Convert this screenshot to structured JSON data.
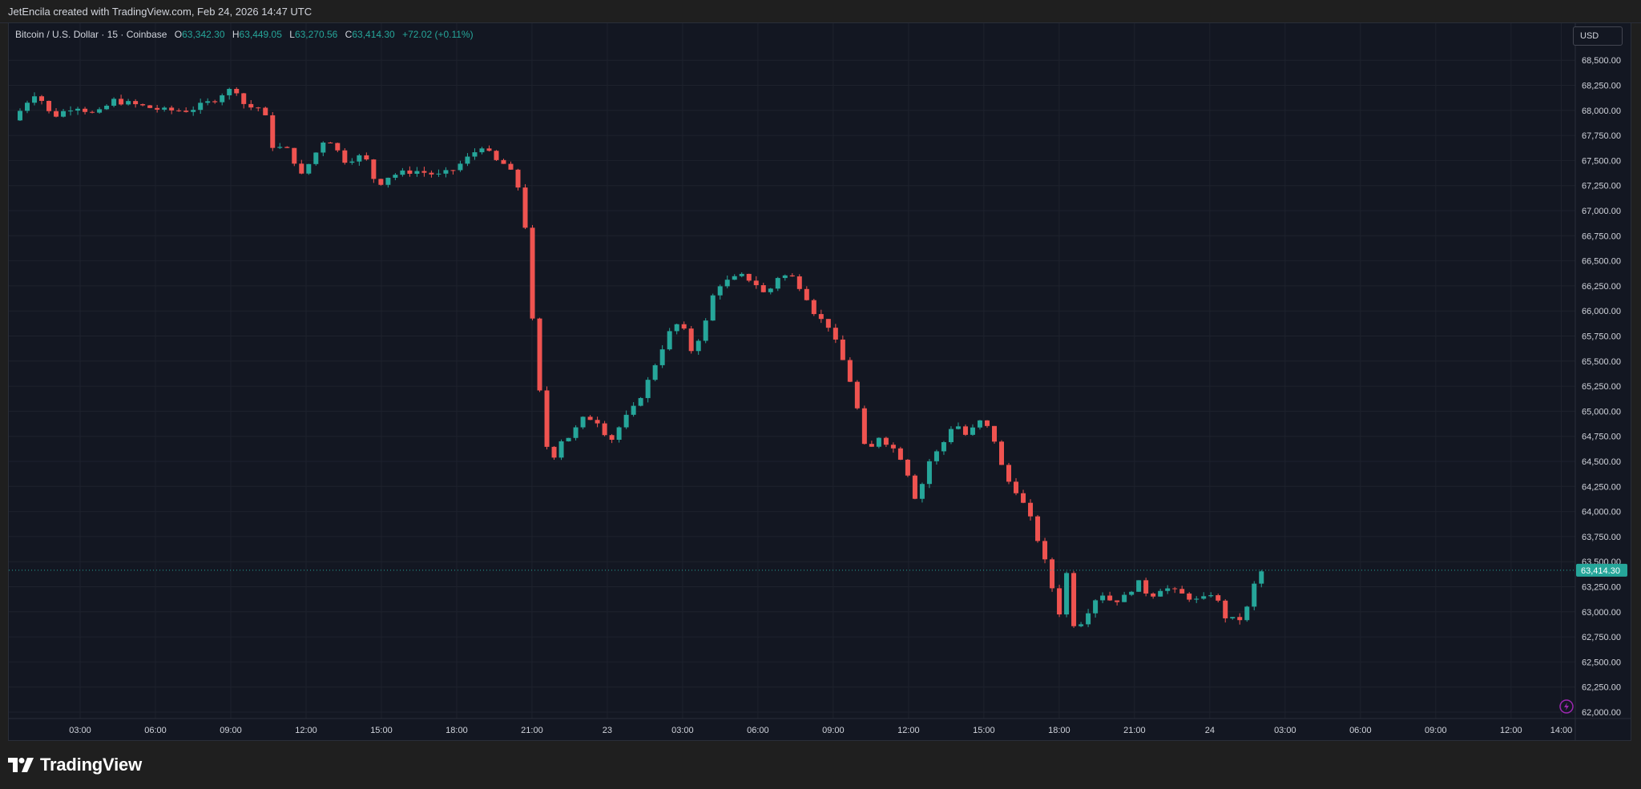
{
  "header": {
    "credit": "JetEncila created with TradingView.com, Feb 24, 2026 14:47 UTC"
  },
  "legend": {
    "symbol": "Bitcoin / U.S. Dollar · 15 · Coinbase",
    "open_label": "O",
    "open": "63,342.30",
    "high_label": "H",
    "high": "63,449.05",
    "low_label": "L",
    "low": "63,270.56",
    "close_label": "C",
    "close": "63,414.30",
    "change": "+72.02 (+0.11%)"
  },
  "toolbar": {
    "currency": "USD"
  },
  "footer": {
    "brand": "TradingView"
  },
  "colors": {
    "up": "#26a69a",
    "down": "#ef5350",
    "background": "#131722",
    "grid": "#1e222d",
    "axis_text": "#d1d4dc",
    "price_line": "#26a69a"
  },
  "icons": [
    "tradingview-logo-icon",
    "lightning-icon"
  ],
  "chart_data": {
    "type": "candlestick",
    "symbol": "BTCUSD",
    "interval": "15",
    "grid": true,
    "ylim": [
      62000,
      68750
    ],
    "y_ticks": [
      "62,000.00",
      "62,250.00",
      "62,500.00",
      "62,750.00",
      "63,000.00",
      "63,250.00",
      "63,500.00",
      "63,750.00",
      "64,000.00",
      "64,250.00",
      "64,500.00",
      "64,750.00",
      "65,000.00",
      "65,250.00",
      "65,500.00",
      "65,750.00",
      "66,000.00",
      "66,250.00",
      "66,500.00",
      "66,750.00",
      "67,000.00",
      "67,250.00",
      "67,500.00",
      "67,750.00",
      "68,000.00",
      "68,250.00",
      "68,500.00"
    ],
    "x_ticks": [
      {
        "label": "03:00",
        "hour": 3
      },
      {
        "label": "06:00",
        "hour": 6
      },
      {
        "label": "09:00",
        "hour": 9
      },
      {
        "label": "12:00",
        "hour": 12
      },
      {
        "label": "15:00",
        "hour": 15
      },
      {
        "label": "18:00",
        "hour": 18
      },
      {
        "label": "21:00",
        "hour": 21
      },
      {
        "label": "23",
        "hour": 24
      },
      {
        "label": "03:00",
        "hour": 27
      },
      {
        "label": "06:00",
        "hour": 30
      },
      {
        "label": "09:00",
        "hour": 33
      },
      {
        "label": "12:00",
        "hour": 36
      },
      {
        "label": "15:00",
        "hour": 39
      },
      {
        "label": "18:00",
        "hour": 42
      },
      {
        "label": "21:00",
        "hour": 45
      },
      {
        "label": "24",
        "hour": 48
      },
      {
        "label": "03:00",
        "hour": 51
      },
      {
        "label": "06:00",
        "hour": 54
      },
      {
        "label": "09:00",
        "hour": 57
      },
      {
        "label": "12:00",
        "hour": 60
      },
      {
        "label": "14:00",
        "hour": 62
      }
    ],
    "last_price": 63414.3,
    "last_price_label": "63,414.30",
    "path": [
      [
        0,
        67900
      ],
      [
        0.6,
        68100
      ],
      [
        1.0,
        68200
      ],
      [
        1.3,
        68000
      ],
      [
        1.7,
        67950
      ],
      [
        2.5,
        68050
      ],
      [
        3.3,
        67950
      ],
      [
        4.0,
        68100
      ],
      [
        5.0,
        68050
      ],
      [
        6.0,
        68000
      ],
      [
        7.0,
        68000
      ],
      [
        8.0,
        68100
      ],
      [
        8.5,
        68200
      ],
      [
        9.0,
        68200
      ],
      [
        9.3,
        68000
      ],
      [
        9.6,
        68050
      ],
      [
        10.0,
        68000
      ],
      [
        10.3,
        67650
      ],
      [
        11.0,
        67600
      ],
      [
        11.5,
        67350
      ],
      [
        12.0,
        67550
      ],
      [
        12.5,
        67750
      ],
      [
        13.2,
        67500
      ],
      [
        14.0,
        67550
      ],
      [
        14.5,
        67250
      ],
      [
        15.0,
        67350
      ],
      [
        16.0,
        67400
      ],
      [
        17.0,
        67350
      ],
      [
        17.5,
        67400
      ],
      [
        18.0,
        67500
      ],
      [
        18.7,
        67650
      ],
      [
        19.2,
        67500
      ],
      [
        19.7,
        67450
      ],
      [
        20.2,
        67200
      ],
      [
        20.5,
        66700
      ],
      [
        20.8,
        65500
      ],
      [
        21.1,
        65000
      ],
      [
        21.4,
        64400
      ],
      [
        21.7,
        64700
      ],
      [
        22.2,
        64750
      ],
      [
        22.8,
        64950
      ],
      [
        23.3,
        64900
      ],
      [
        23.8,
        64700
      ],
      [
        24.3,
        64900
      ],
      [
        24.8,
        65050
      ],
      [
        25.3,
        65300
      ],
      [
        25.8,
        65600
      ],
      [
        26.2,
        65800
      ],
      [
        26.6,
        65900
      ],
      [
        27.0,
        65600
      ],
      [
        27.5,
        65800
      ],
      [
        28.0,
        66250
      ],
      [
        28.5,
        66300
      ],
      [
        29.0,
        66350
      ],
      [
        29.5,
        66300
      ],
      [
        30.0,
        66150
      ],
      [
        30.5,
        66350
      ],
      [
        31.0,
        66350
      ],
      [
        31.5,
        66200
      ],
      [
        32.0,
        65950
      ],
      [
        32.5,
        65850
      ],
      [
        33.0,
        65550
      ],
      [
        33.5,
        65200
      ],
      [
        34.0,
        64550
      ],
      [
        34.5,
        64750
      ],
      [
        35.0,
        64650
      ],
      [
        35.5,
        64500
      ],
      [
        36.0,
        64100
      ],
      [
        36.5,
        64500
      ],
      [
        37.0,
        64650
      ],
      [
        37.5,
        64900
      ],
      [
        38.0,
        64750
      ],
      [
        38.5,
        64900
      ],
      [
        39.0,
        64800
      ],
      [
        39.5,
        64350
      ],
      [
        40.0,
        64200
      ],
      [
        40.5,
        63950
      ],
      [
        41.0,
        63600
      ],
      [
        41.5,
        63150
      ],
      [
        41.8,
        62900
      ],
      [
        42.0,
        63450
      ],
      [
        42.3,
        62800
      ],
      [
        42.8,
        63000
      ],
      [
        43.3,
        63200
      ],
      [
        43.8,
        63100
      ],
      [
        44.3,
        63150
      ],
      [
        44.8,
        63300
      ],
      [
        45.3,
        63150
      ],
      [
        45.8,
        63250
      ],
      [
        46.3,
        63200
      ],
      [
        46.8,
        63150
      ],
      [
        47.3,
        63100
      ],
      [
        47.8,
        63200
      ],
      [
        48.3,
        62950
      ],
      [
        48.8,
        62900
      ],
      [
        49.2,
        63050
      ],
      [
        49.6,
        63400
      ]
    ]
  }
}
